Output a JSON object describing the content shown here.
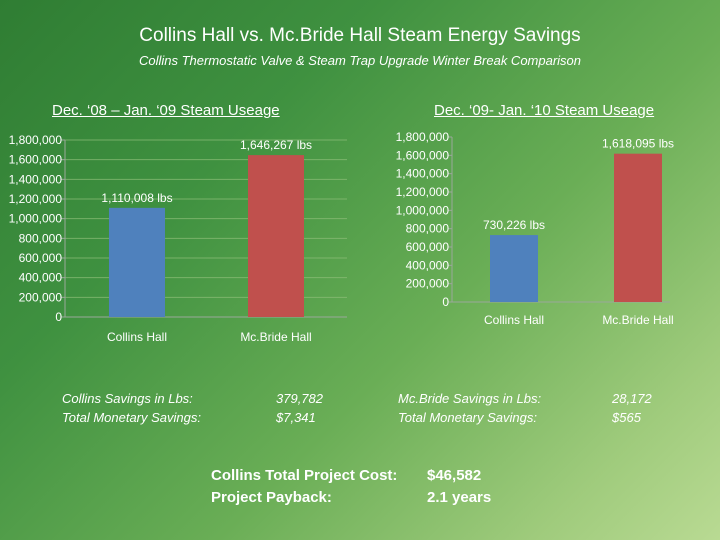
{
  "header": {
    "title": "Collins Hall vs. Mc.Bride Hall Steam Energy Savings",
    "subtitle": "Collins Thermostatic Valve & Steam Trap Upgrade Winter Break Comparison"
  },
  "chart_data": [
    {
      "type": "bar",
      "title": "Dec. ‘08 – Jan. ‘09 Steam Useage",
      "categories": [
        "Collins Hall",
        "Mc.Bride Hall"
      ],
      "values": [
        1110008,
        1646267
      ],
      "data_labels": [
        "1,110,008 lbs",
        "1,646,267 lbs"
      ],
      "colors": [
        "#4f81bd",
        "#c0504d"
      ],
      "ylim": [
        0,
        1800000
      ],
      "yticks": [
        0,
        200000,
        400000,
        600000,
        800000,
        1000000,
        1200000,
        1400000,
        1600000,
        1800000
      ],
      "ytick_labels": [
        "0",
        "200,000",
        "400,000",
        "600,000",
        "800,000",
        "1,000,000",
        "1,200,000",
        "1,400,000",
        "1,600,000",
        "1,800,000"
      ],
      "grid": true,
      "legend": "none"
    },
    {
      "type": "bar",
      "title": "Dec. ‘09- Jan. ‘10 Steam Useage",
      "categories": [
        "Collins Hall",
        "Mc.Bride Hall"
      ],
      "values": [
        730226,
        1618095
      ],
      "data_labels": [
        "730,226 lbs",
        "1,618,095 lbs"
      ],
      "colors": [
        "#4f81bd",
        "#c0504d"
      ],
      "ylim": [
        0,
        1800000
      ],
      "yticks": [
        0,
        200000,
        400000,
        600000,
        800000,
        1000000,
        1200000,
        1400000,
        1600000,
        1800000
      ],
      "ytick_labels": [
        "0",
        "200,000",
        "400,000",
        "600,000",
        "800,000",
        "1,000,000",
        "1,200,000",
        "1,400,000",
        "1,600,000",
        "1,800,000"
      ],
      "grid": false,
      "legend": "none"
    }
  ],
  "savings": {
    "collins": {
      "label1": "Collins Savings in Lbs:",
      "label2": "Total  Monetary Savings:",
      "value1": "379,782",
      "value2": "$7,341"
    },
    "mcbride": {
      "label1": "Mc.Bride Savings in Lbs:",
      "label2": "Total  Monetary Savings:",
      "value1": "28,172",
      "value2": "$565"
    }
  },
  "project": {
    "cost_label": "Collins Total Project Cost:",
    "cost_value": "$46,582",
    "payback_label": "Project Payback:",
    "payback_value": "2.1 years"
  }
}
